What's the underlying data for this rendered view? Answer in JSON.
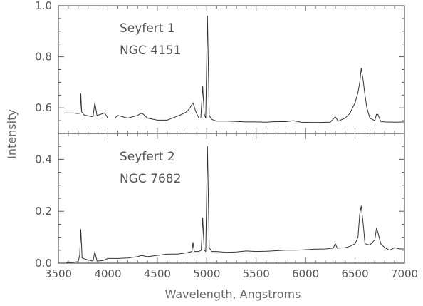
{
  "chart_data": [
    {
      "type": "line",
      "panel": "top",
      "annotation_lines": [
        "Seyfert 1",
        "NGC 4151"
      ],
      "xlabel": "Wavelength, Angstroms",
      "ylabel": "Intensity",
      "xlim": [
        3500,
        7000
      ],
      "ylim": [
        0.5,
        1.0
      ],
      "x_ticks": [
        3500,
        4000,
        4500,
        5000,
        5500,
        6000,
        6500,
        7000
      ],
      "y_ticks": [
        0.6,
        0.8,
        1.0
      ],
      "y_tick_labels": [
        "0.6",
        "0.8",
        "1.0"
      ],
      "grid": false,
      "series": [
        {
          "x": [
            3550,
            3650,
            3700,
            3720,
            3727,
            3735,
            3760,
            3850,
            3869,
            3890,
            3968,
            4000,
            4070,
            4102,
            4200,
            4300,
            4340,
            4360,
            4400,
            4500,
            4600,
            4686,
            4750,
            4800,
            4830,
            4861,
            4890,
            4920,
            4940,
            4959,
            4975,
            4990,
            5007,
            5025,
            5050,
            5100,
            5200,
            5300,
            5400,
            5500,
            5600,
            5700,
            5800,
            5876,
            5950,
            6050,
            6150,
            6250,
            6300,
            6330,
            6400,
            6450,
            6500,
            6530,
            6548,
            6563,
            6583,
            6600,
            6620,
            6650,
            6700,
            6717,
            6731,
            6760,
            6800,
            6900,
            7000
          ],
          "y": [
            0.58,
            0.58,
            0.578,
            0.58,
            0.655,
            0.585,
            0.572,
            0.565,
            0.62,
            0.57,
            0.58,
            0.56,
            0.56,
            0.57,
            0.56,
            0.57,
            0.58,
            0.575,
            0.56,
            0.552,
            0.552,
            0.565,
            0.575,
            0.585,
            0.6,
            0.62,
            0.585,
            0.56,
            0.56,
            0.685,
            0.575,
            0.56,
            0.96,
            0.57,
            0.555,
            0.548,
            0.548,
            0.547,
            0.545,
            0.545,
            0.544,
            0.546,
            0.546,
            0.55,
            0.544,
            0.543,
            0.543,
            0.544,
            0.565,
            0.548,
            0.56,
            0.58,
            0.62,
            0.66,
            0.7,
            0.755,
            0.705,
            0.65,
            0.6,
            0.56,
            0.55,
            0.575,
            0.575,
            0.547,
            0.545,
            0.544,
            0.545
          ]
        }
      ]
    },
    {
      "type": "line",
      "panel": "bottom",
      "annotation_lines": [
        "Seyfert 2",
        "NGC 7682"
      ],
      "xlabel": "Wavelength, Angstroms",
      "ylabel": "Intensity",
      "xlim": [
        3500,
        7000
      ],
      "ylim": [
        0.0,
        0.5
      ],
      "x_ticks": [
        3500,
        4000,
        4500,
        5000,
        5500,
        6000,
        6500,
        7000
      ],
      "x_tick_labels": [
        "3500",
        "4000",
        "4500",
        "5000",
        "5500",
        "6000",
        "6500",
        "7000"
      ],
      "y_ticks": [
        0.0,
        0.2,
        0.4
      ],
      "y_tick_labels": [
        "0.0",
        "0.2",
        "0.4"
      ],
      "grid": false,
      "series": [
        {
          "x": [
            3580,
            3650,
            3700,
            3715,
            3727,
            3740,
            3800,
            3850,
            3869,
            3890,
            3950,
            4000,
            4100,
            4200,
            4300,
            4340,
            4400,
            4500,
            4600,
            4700,
            4800,
            4850,
            4861,
            4875,
            4920,
            4945,
            4959,
            4975,
            4990,
            5007,
            5025,
            5050,
            5100,
            5200,
            5300,
            5400,
            5500,
            5600,
            5700,
            5800,
            5900,
            6000,
            6100,
            6200,
            6280,
            6300,
            6320,
            6400,
            6450,
            6500,
            6530,
            6548,
            6563,
            6583,
            6600,
            6650,
            6700,
            6717,
            6731,
            6760,
            6800,
            6850,
            6900,
            6950,
            7000
          ],
          "y": [
            0.002,
            0.003,
            0.006,
            0.03,
            0.13,
            0.02,
            0.012,
            0.008,
            0.045,
            0.008,
            0.01,
            0.018,
            0.018,
            0.02,
            0.025,
            0.03,
            0.025,
            0.03,
            0.035,
            0.035,
            0.04,
            0.045,
            0.08,
            0.045,
            0.045,
            0.05,
            0.175,
            0.05,
            0.045,
            0.45,
            0.06,
            0.045,
            0.045,
            0.042,
            0.043,
            0.047,
            0.045,
            0.046,
            0.048,
            0.05,
            0.05,
            0.052,
            0.054,
            0.055,
            0.058,
            0.075,
            0.058,
            0.06,
            0.065,
            0.075,
            0.1,
            0.19,
            0.22,
            0.15,
            0.075,
            0.07,
            0.09,
            0.135,
            0.12,
            0.075,
            0.06,
            0.05,
            0.06,
            0.055,
            0.055
          ]
        }
      ]
    }
  ]
}
